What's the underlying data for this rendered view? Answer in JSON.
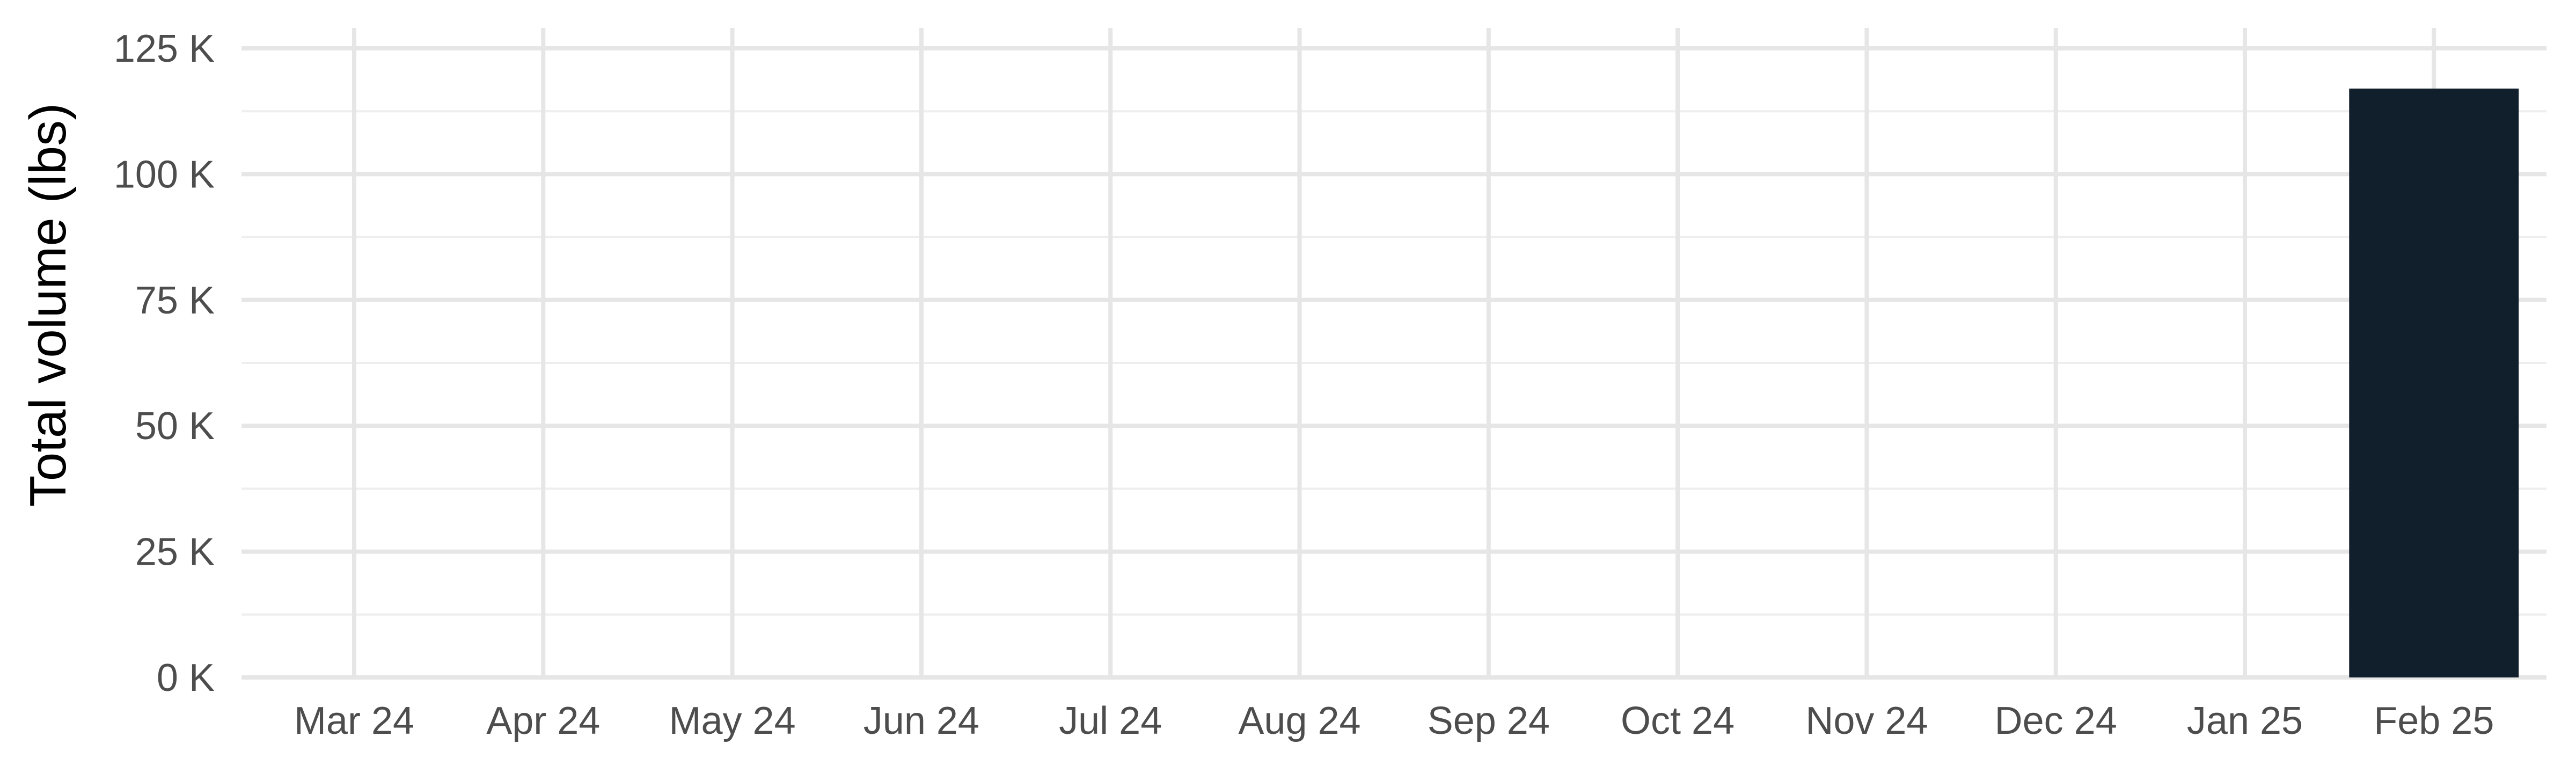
{
  "chart_data": {
    "type": "bar",
    "categories": [
      "Mar 24",
      "Apr 24",
      "May 24",
      "Jun 24",
      "Jul 24",
      "Aug 24",
      "Sep 24",
      "Oct 24",
      "Nov 24",
      "Dec 24",
      "Jan 25",
      "Feb 25"
    ],
    "values": [
      0,
      0,
      0,
      0,
      0,
      0,
      0,
      0,
      0,
      0,
      0,
      117000
    ],
    "xlabel": "",
    "ylabel": "Total volume (lbs)",
    "ylim": [
      0,
      125000
    ],
    "y_ticks": [
      0,
      25000,
      50000,
      75000,
      100000,
      125000
    ],
    "y_tick_labels": [
      "0 K",
      "25 K",
      "50 K",
      "75 K",
      "100 K",
      "125 K"
    ],
    "grid": true,
    "legend": "none",
    "bar_color": "#111e2b"
  }
}
